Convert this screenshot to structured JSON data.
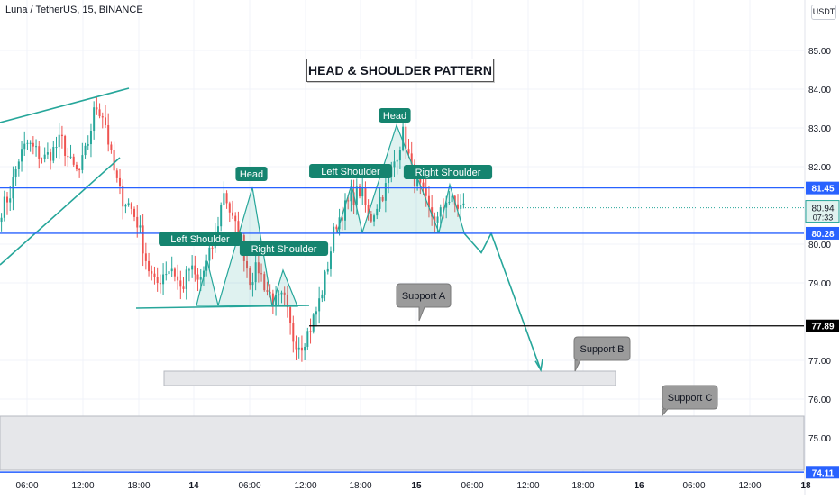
{
  "header": {
    "title": "Luna / TetherUS, 15, BINANCE"
  },
  "currency": "USDT",
  "pattern_title": "HEAD & SHOULDER PATTERN",
  "colors": {
    "up": "#26a69a",
    "down": "#ef5350",
    "pattern": "#26a69a",
    "level_blue": "#2962ff",
    "level_black": "#000000",
    "zone": "#d1d4dc"
  },
  "chart_data": {
    "type": "candlestick",
    "symbol": "Luna / TetherUS",
    "interval": "15",
    "exchange": "BINANCE",
    "ylim": [
      73.9,
      86.4
    ],
    "y_ticks": [
      75.0,
      76.0,
      77.0,
      79.0,
      80.0,
      82.0,
      83.0,
      84.0,
      85.0
    ],
    "x_ticks": [
      "06:00",
      "12:00",
      "18:00",
      "14",
      "06:00",
      "12:00",
      "18:00",
      "15",
      "06:00",
      "12:00",
      "18:00",
      "16",
      "06:00",
      "12:00",
      "18"
    ],
    "grid": true,
    "price_levels": [
      {
        "price": 81.45,
        "label": "81.45",
        "color": "#2962ff"
      },
      {
        "price": 80.28,
        "label": "80.28",
        "color": "#2962ff"
      },
      {
        "price": 77.89,
        "label": "77.89",
        "color": "#000000"
      },
      {
        "price": 74.11,
        "label": "74.11",
        "color": "#2962ff"
      }
    ],
    "current_price": {
      "price": 80.94,
      "label": "80.94",
      "countdown": "07:33"
    },
    "annotations": {
      "pattern_1": {
        "left_shoulder": "Left Shoulder",
        "head": "Head",
        "right_shoulder": "Right Shoulder"
      },
      "pattern_2": {
        "left_shoulder": "Left Shoulder",
        "head": "Head",
        "right_shoulder": "Right Shoulder"
      },
      "supports": [
        "Support A",
        "Support B",
        "Support C"
      ]
    },
    "anchor_prices": [
      80.9,
      81.3,
      82.2,
      82.6,
      82.4,
      82.2,
      82.4,
      82.7,
      82.1,
      81.8,
      82.5,
      83.6,
      83.3,
      82.0,
      81.2,
      81.0,
      80.5,
      79.5,
      78.9,
      79.3,
      79.4,
      78.8,
      79.4,
      79.0,
      79.5,
      80.2,
      81.4,
      80.6,
      80.1,
      79.1,
      79.4,
      78.8,
      78.5,
      78.6,
      77.6,
      77.4,
      77.8,
      78.4,
      79.3,
      80.5,
      80.9,
      81.2,
      81.4,
      80.6,
      81.1,
      81.5,
      82.2,
      82.9,
      81.8,
      81.4,
      80.8,
      80.6,
      81.2,
      81.0,
      80.94
    ],
    "candles": [],
    "projection_prices": [
      80.28,
      79.78,
      80.28,
      76.75
    ]
  }
}
